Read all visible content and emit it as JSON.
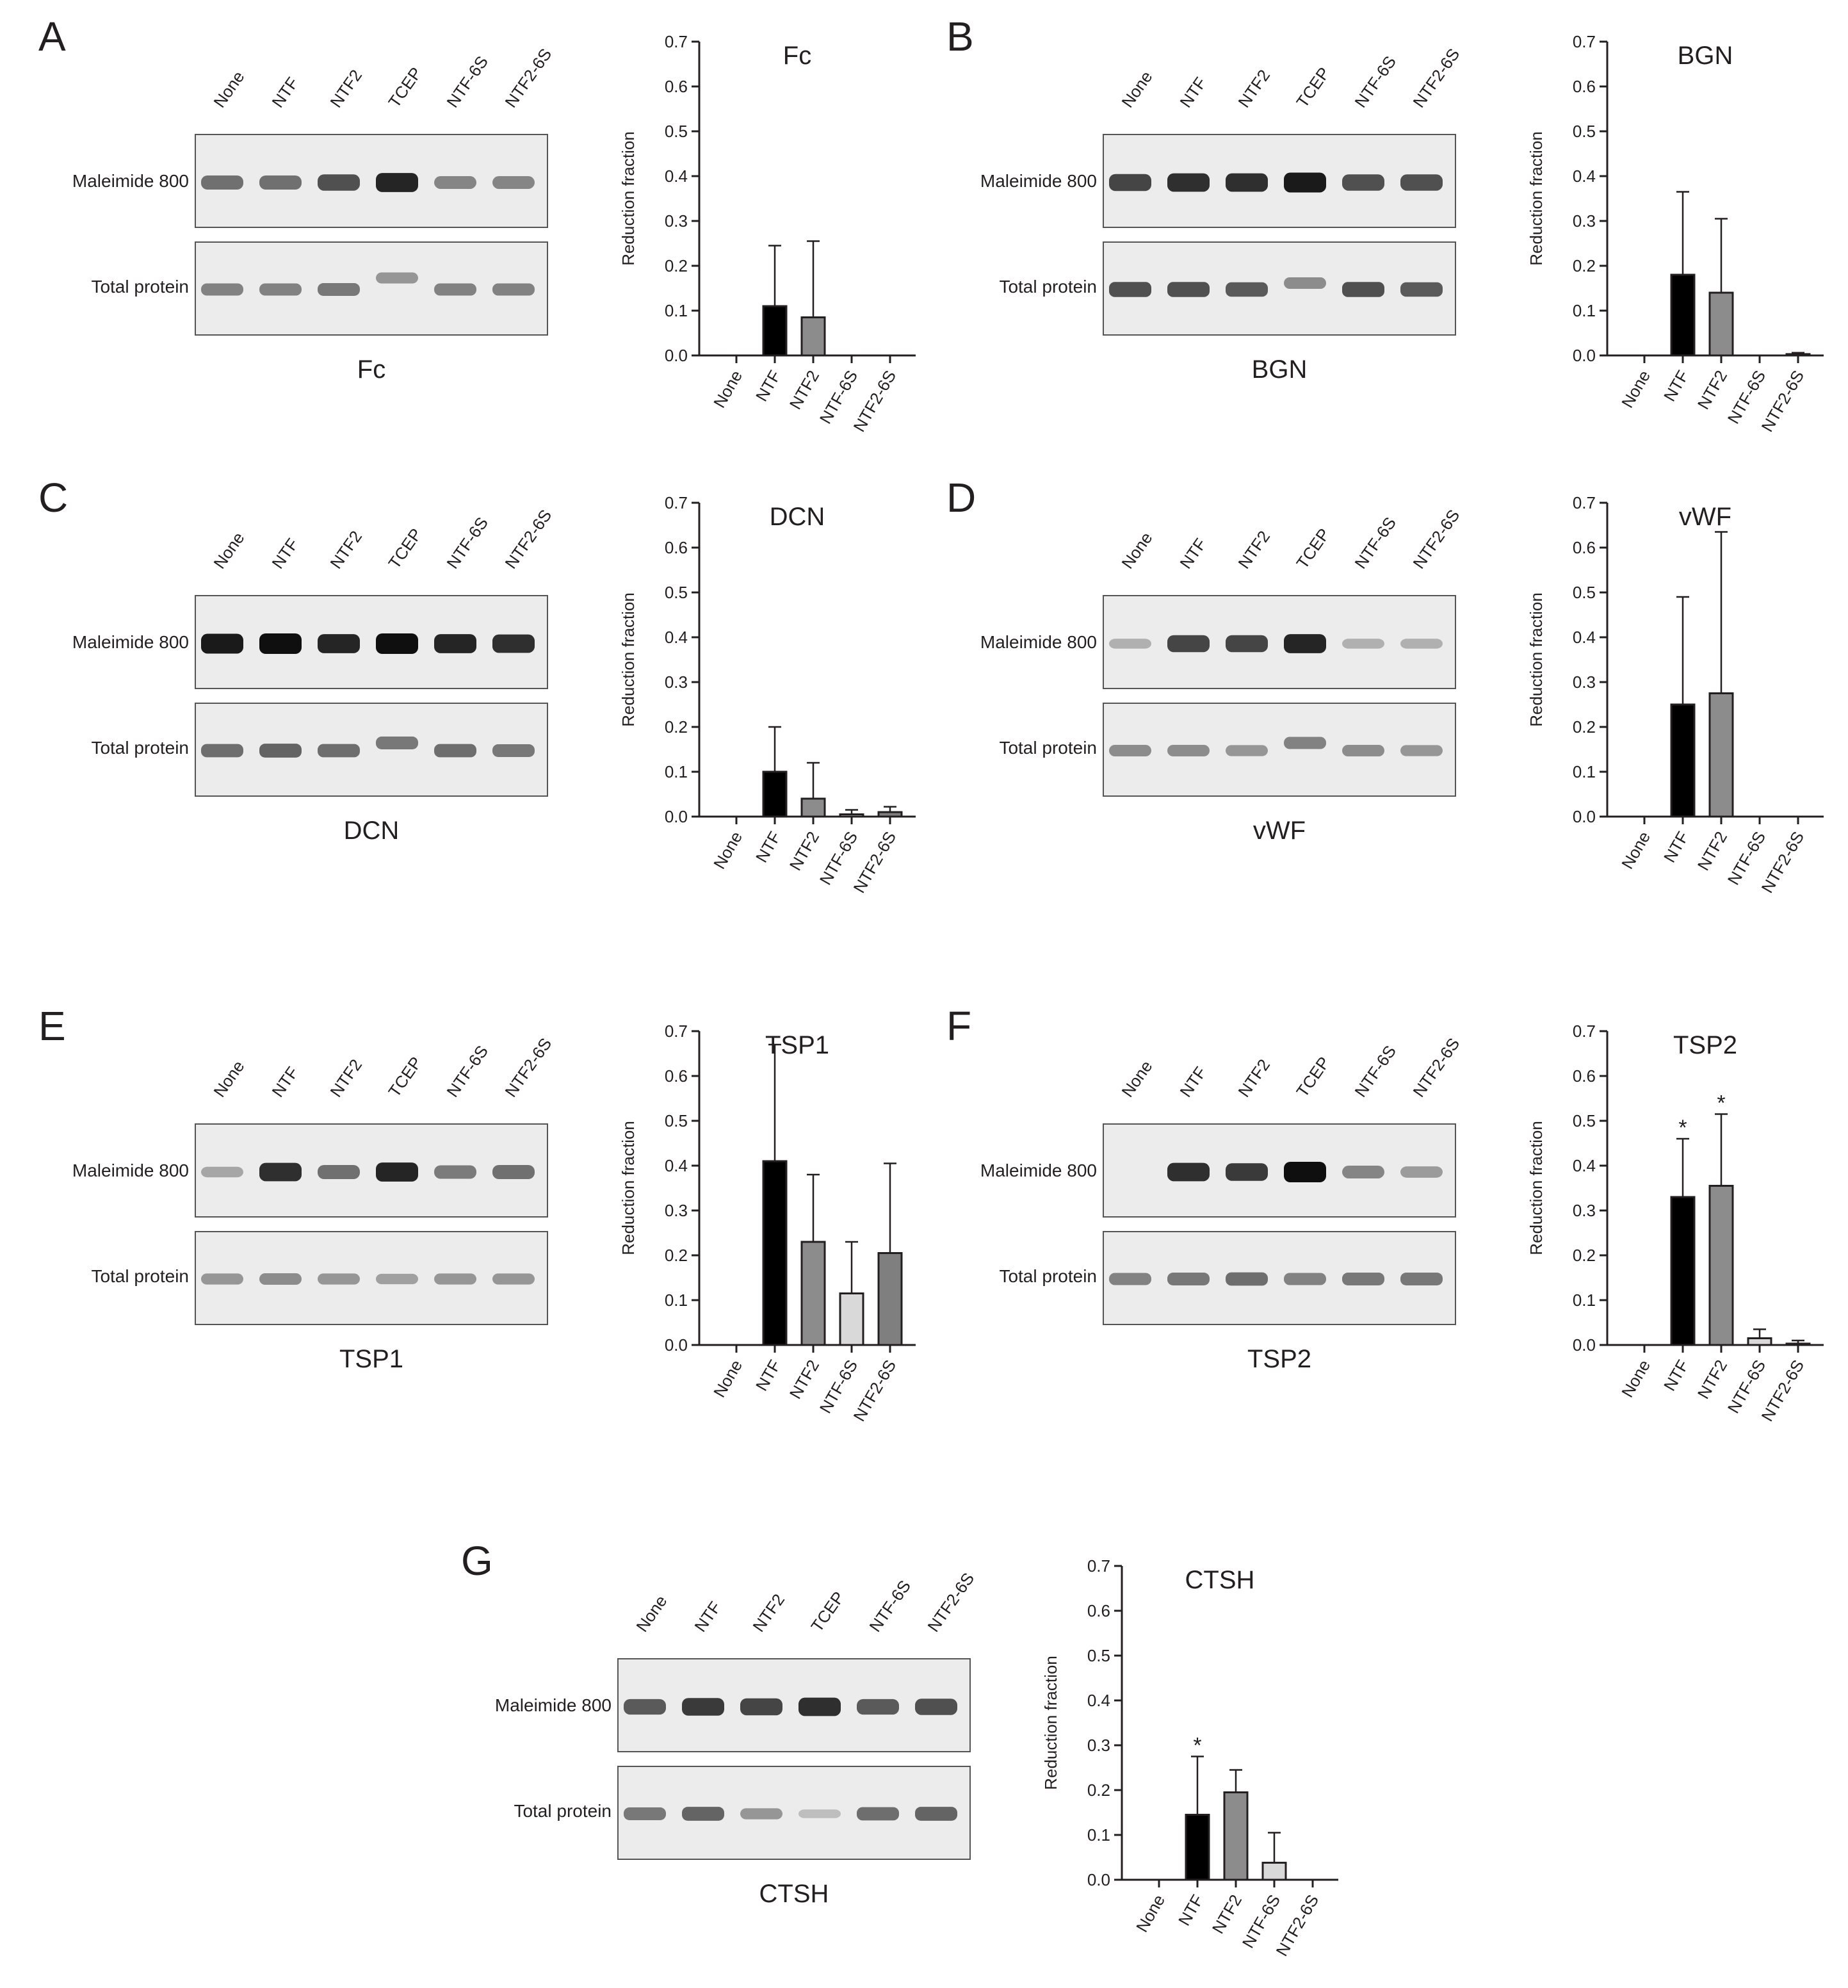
{
  "blot_labels": {
    "lanes": [
      "None",
      "NTF",
      "NTF2",
      "TCEP",
      "NTF-6S",
      "NTF2-6S"
    ],
    "row_maleimide": "Maleimide 800",
    "row_total": "Total protein"
  },
  "panels": [
    {
      "letter": "A",
      "protein": "Fc"
    },
    {
      "letter": "B",
      "protein": "BGN"
    },
    {
      "letter": "C",
      "protein": "DCN"
    },
    {
      "letter": "D",
      "protein": "vWF"
    },
    {
      "letter": "E",
      "protein": "TSP1"
    },
    {
      "letter": "F",
      "protein": "TSP2"
    },
    {
      "letter": "G",
      "protein": "CTSH"
    }
  ],
  "colors": {
    "NTF": "#000000",
    "NTF2": "#8c8c8c",
    "NTF-6S": "#d9d9d9",
    "NTF2-6S": "#7f7f7f",
    "axis": "#231f20"
  },
  "chart_data": [
    {
      "type": "bar",
      "title": "Fc",
      "ylabel": "Reduction fraction",
      "categories": [
        "None",
        "NTF",
        "NTF2",
        "NTF-6S",
        "NTF2-6S"
      ],
      "values": [
        0,
        0.11,
        0.085,
        0,
        0
      ],
      "errors": [
        0,
        0.135,
        0.17,
        0,
        0
      ],
      "significant": [
        false,
        false,
        false,
        false,
        false
      ],
      "ylim": [
        0,
        0.7
      ],
      "yticks": [
        "0.0",
        "0.1",
        "0.2",
        "0.3",
        "0.4",
        "0.5",
        "0.6",
        "0.7"
      ]
    },
    {
      "type": "bar",
      "title": "BGN",
      "ylabel": "Reduction fraction",
      "categories": [
        "None",
        "NTF",
        "NTF2",
        "NTF-6S",
        "NTF2-6S"
      ],
      "values": [
        0,
        0.18,
        0.14,
        0,
        0.003
      ],
      "errors": [
        0,
        0.185,
        0.165,
        0,
        0.003
      ],
      "significant": [
        false,
        false,
        false,
        false,
        false
      ],
      "ylim": [
        0,
        0.7
      ],
      "yticks": [
        "0.0",
        "0.1",
        "0.2",
        "0.3",
        "0.4",
        "0.5",
        "0.6",
        "0.7"
      ]
    },
    {
      "type": "bar",
      "title": "DCN",
      "ylabel": "Reduction fraction",
      "categories": [
        "None",
        "NTF",
        "NTF2",
        "NTF-6S",
        "NTF2-6S"
      ],
      "values": [
        0,
        0.1,
        0.04,
        0.005,
        0.01
      ],
      "errors": [
        0,
        0.1,
        0.08,
        0.01,
        0.012
      ],
      "significant": [
        false,
        false,
        false,
        false,
        false
      ],
      "ylim": [
        0,
        0.7
      ],
      "yticks": [
        "0.0",
        "0.1",
        "0.2",
        "0.3",
        "0.4",
        "0.5",
        "0.6",
        "0.7"
      ]
    },
    {
      "type": "bar",
      "title": "vWF",
      "ylabel": "Reduction fraction",
      "categories": [
        "None",
        "NTF",
        "NTF2",
        "NTF-6S",
        "NTF2-6S"
      ],
      "values": [
        0,
        0.25,
        0.275,
        0,
        0
      ],
      "errors": [
        0,
        0.24,
        0.36,
        0,
        0
      ],
      "significant": [
        false,
        false,
        false,
        false,
        false
      ],
      "ylim": [
        0,
        0.7
      ],
      "yticks": [
        "0.0",
        "0.1",
        "0.2",
        "0.3",
        "0.4",
        "0.5",
        "0.6",
        "0.7"
      ]
    },
    {
      "type": "bar",
      "title": "TSP1",
      "ylabel": "Reduction fraction",
      "categories": [
        "None",
        "NTF",
        "NTF2",
        "NTF-6S",
        "NTF2-6S"
      ],
      "values": [
        0,
        0.41,
        0.23,
        0.115,
        0.205
      ],
      "errors": [
        0,
        0.26,
        0.15,
        0.115,
        0.2
      ],
      "significant": [
        false,
        false,
        false,
        false,
        false
      ],
      "ylim": [
        0,
        0.7
      ],
      "yticks": [
        "0.0",
        "0.1",
        "0.2",
        "0.3",
        "0.4",
        "0.5",
        "0.6",
        "0.7"
      ]
    },
    {
      "type": "bar",
      "title": "TSP2",
      "ylabel": "Reduction fraction",
      "categories": [
        "None",
        "NTF",
        "NTF2",
        "NTF-6S",
        "NTF2-6S"
      ],
      "values": [
        0,
        0.33,
        0.355,
        0.015,
        0.003
      ],
      "errors": [
        0,
        0.13,
        0.16,
        0.02,
        0.007
      ],
      "significant": [
        false,
        true,
        true,
        false,
        false
      ],
      "ylim": [
        0,
        0.7
      ],
      "yticks": [
        "0.0",
        "0.1",
        "0.2",
        "0.3",
        "0.4",
        "0.5",
        "0.6",
        "0.7"
      ]
    },
    {
      "type": "bar",
      "title": "CTSH",
      "ylabel": "Reduction fraction",
      "categories": [
        "None",
        "NTF",
        "NTF2",
        "NTF-6S",
        "NTF2-6S"
      ],
      "values": [
        0,
        0.145,
        0.195,
        0.038,
        0
      ],
      "errors": [
        0,
        0.13,
        0.05,
        0.067,
        0
      ],
      "significant": [
        false,
        true,
        false,
        false,
        false
      ],
      "ylim": [
        0,
        0.7
      ],
      "yticks": [
        "0.0",
        "0.1",
        "0.2",
        "0.3",
        "0.4",
        "0.5",
        "0.6",
        "0.7"
      ]
    }
  ]
}
